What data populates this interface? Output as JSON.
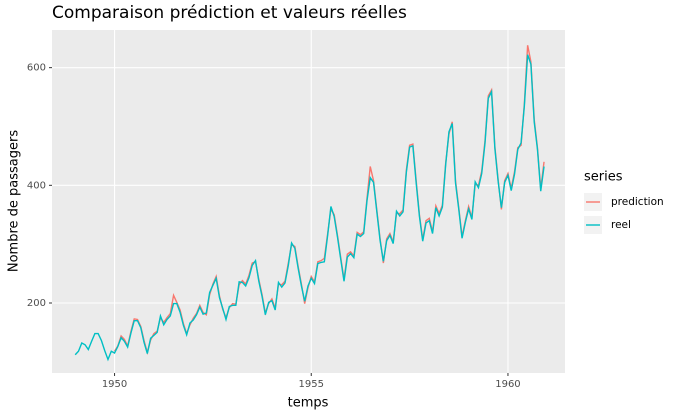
{
  "chart_data": {
    "type": "line",
    "title": "Comparaison prédiction et valeurs réelles",
    "xlabel": "temps",
    "ylabel": "Nombre de passagers",
    "legend_title": "series",
    "legend": "right",
    "grid": true,
    "xlim": [
      1948.41,
      1961.45
    ],
    "xticks": [
      1950,
      1955,
      1960
    ],
    "ylim": [
      81,
      664
    ],
    "yticks": [
      200,
      400,
      600
    ],
    "x": [
      1949,
      1949.083,
      1949.167,
      1949.25,
      1949.333,
      1949.417,
      1949.5,
      1949.583,
      1949.667,
      1949.75,
      1949.833,
      1949.917,
      1950,
      1950.083,
      1950.167,
      1950.25,
      1950.333,
      1950.417,
      1950.5,
      1950.583,
      1950.667,
      1950.75,
      1950.833,
      1950.917,
      1951,
      1951.083,
      1951.167,
      1951.25,
      1951.333,
      1951.417,
      1951.5,
      1951.583,
      1951.667,
      1951.75,
      1951.833,
      1951.917,
      1952,
      1952.083,
      1952.167,
      1952.25,
      1952.333,
      1952.417,
      1952.5,
      1952.583,
      1952.667,
      1952.75,
      1952.833,
      1952.917,
      1953,
      1953.083,
      1953.167,
      1953.25,
      1953.333,
      1953.417,
      1953.5,
      1953.583,
      1953.667,
      1953.75,
      1953.833,
      1953.917,
      1954,
      1954.083,
      1954.167,
      1954.25,
      1954.333,
      1954.417,
      1954.5,
      1954.583,
      1954.667,
      1954.75,
      1954.833,
      1954.917,
      1955,
      1955.083,
      1955.167,
      1955.25,
      1955.333,
      1955.417,
      1955.5,
      1955.583,
      1955.667,
      1955.75,
      1955.833,
      1955.917,
      1956,
      1956.083,
      1956.167,
      1956.25,
      1956.333,
      1956.417,
      1956.5,
      1956.583,
      1956.667,
      1956.75,
      1956.833,
      1956.917,
      1957,
      1957.083,
      1957.167,
      1957.25,
      1957.333,
      1957.417,
      1957.5,
      1957.583,
      1957.667,
      1957.75,
      1957.833,
      1957.917,
      1958,
      1958.083,
      1958.167,
      1958.25,
      1958.333,
      1958.417,
      1958.5,
      1958.583,
      1958.667,
      1958.75,
      1958.833,
      1958.917,
      1959,
      1959.083,
      1959.167,
      1959.25,
      1959.333,
      1959.417,
      1959.5,
      1959.583,
      1959.667,
      1959.75,
      1959.833,
      1959.917,
      1960,
      1960.083,
      1960.167,
      1960.25,
      1960.333,
      1960.417,
      1960.5,
      1960.583,
      1960.667,
      1960.75,
      1960.833,
      1960.917
    ],
    "series": [
      {
        "name": "prediction",
        "color": "#F8766D",
        "values": [
          null,
          null,
          null,
          null,
          null,
          null,
          null,
          null,
          null,
          null,
          null,
          null,
          118,
          127,
          144,
          138,
          127,
          152,
          173,
          172,
          160,
          136,
          116,
          137,
          148,
          152,
          175,
          167,
          175,
          182,
          213,
          201,
          188,
          165,
          148,
          163,
          174,
          182,
          196,
          184,
          180,
          214,
          232,
          245,
          212,
          189,
          175,
          192,
          199,
          198,
          231,
          238,
          232,
          247,
          268,
          270,
          240,
          214,
          183,
          199,
          207,
          191,
          232,
          231,
          237,
          268,
          299,
          296,
          262,
          232,
          199,
          226,
          245,
          236,
          270,
          272,
          276,
          318,
          360,
          350,
          315,
          277,
          240,
          283,
          287,
          280,
          320,
          316,
          321,
          378,
          432,
          408,
          358,
          309,
          268,
          309,
          318,
          304,
          352,
          352,
          358,
          426,
          468,
          470,
          408,
          350,
          308,
          340,
          344,
          321,
          365,
          352,
          366,
          438,
          487,
          508,
          408,
          362,
          313,
          340,
          364,
          345,
          402,
          400,
          424,
          476,
          552,
          562,
          466,
          410,
          359,
          408,
          420,
          395,
          423,
          464,
          468,
          539,
          638,
          610,
          512,
          464,
          394,
          440
        ]
      },
      {
        "name": "reel",
        "color": "#00BFC4",
        "values": [
          112,
          118,
          132,
          129,
          121,
          135,
          148,
          148,
          136,
          119,
          104,
          118,
          115,
          126,
          141,
          135,
          125,
          149,
          170,
          170,
          158,
          133,
          114,
          140,
          145,
          150,
          178,
          163,
          172,
          178,
          199,
          199,
          184,
          162,
          146,
          166,
          171,
          180,
          193,
          181,
          183,
          218,
          230,
          242,
          209,
          191,
          172,
          194,
          196,
          196,
          236,
          235,
          229,
          243,
          264,
          272,
          237,
          211,
          180,
          201,
          204,
          188,
          235,
          227,
          234,
          264,
          302,
          293,
          259,
          229,
          203,
          229,
          242,
          233,
          267,
          269,
          270,
          315,
          364,
          347,
          312,
          274,
          237,
          278,
          284,
          277,
          317,
          313,
          318,
          374,
          413,
          405,
          355,
          306,
          271,
          306,
          315,
          301,
          356,
          348,
          355,
          422,
          465,
          467,
          404,
          347,
          305,
          336,
          340,
          318,
          362,
          348,
          363,
          435,
          491,
          505,
          404,
          359,
          310,
          337,
          360,
          342,
          406,
          396,
          420,
          472,
          548,
          559,
          463,
          407,
          362,
          405,
          417,
          391,
          419,
          461,
          472,
          535,
          622,
          606,
          508,
          461,
          390,
          432
        ]
      }
    ]
  }
}
